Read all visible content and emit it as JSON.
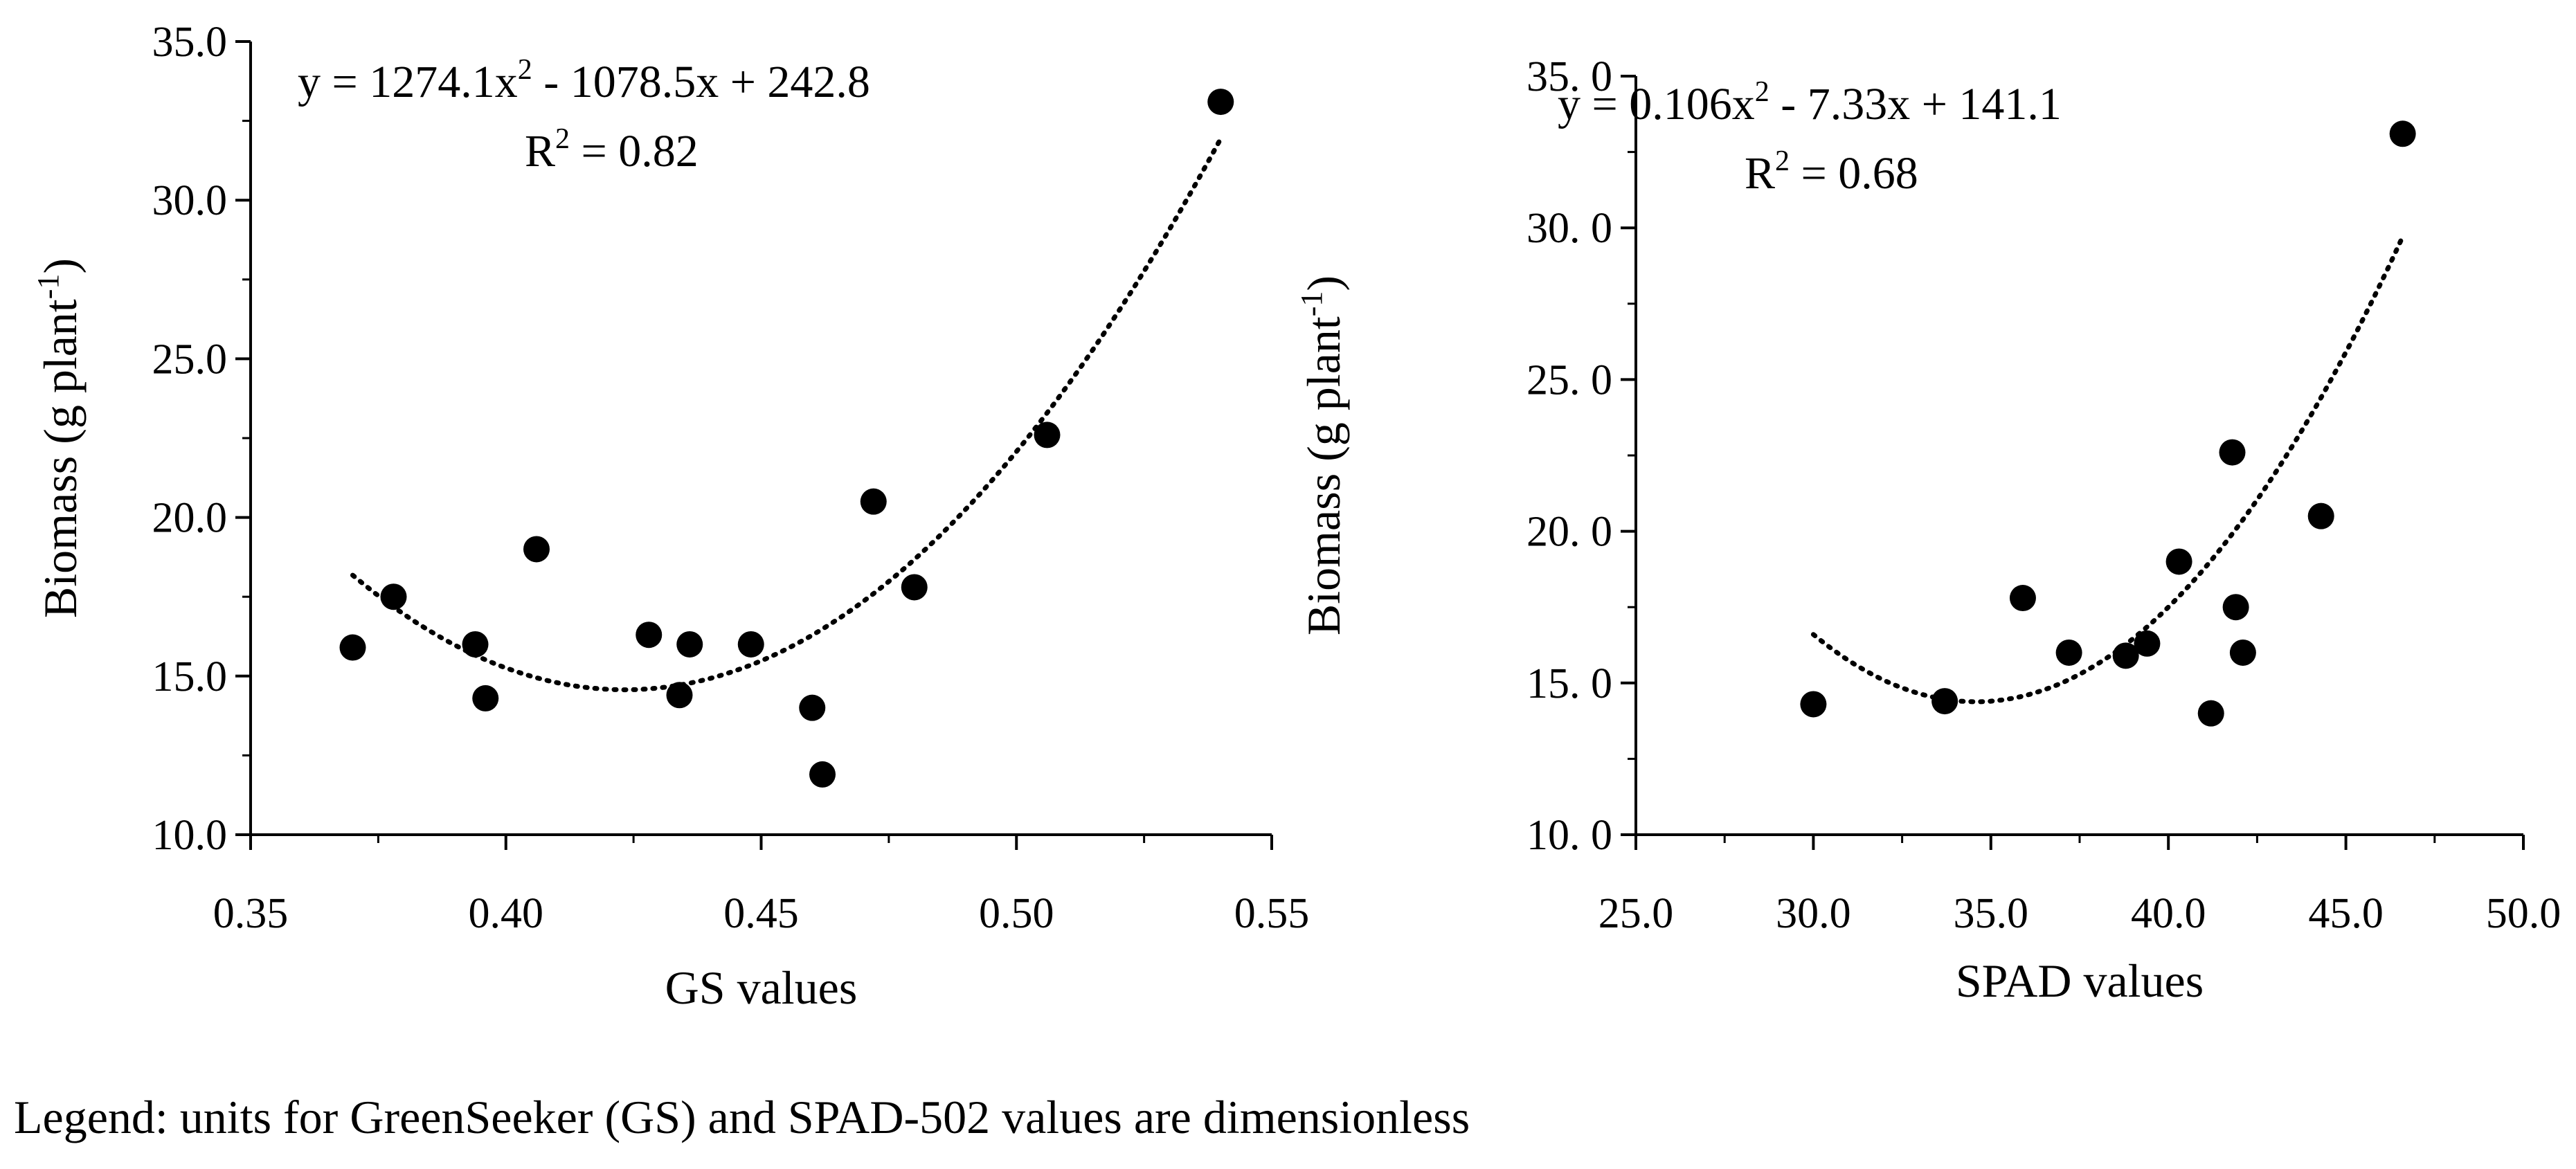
{
  "chart_data": [
    {
      "type": "scatter",
      "xlabel": "GS values",
      "ylabel": "Biomass (g plant",
      "ylabel_sup": "-1",
      "ylabel_close": ")",
      "xlim": [
        0.35,
        0.55
      ],
      "ylim": [
        10.0,
        35.0
      ],
      "xticks": [
        0.35,
        0.4,
        0.45,
        0.5,
        0.55
      ],
      "xtick_labels": [
        "0.35",
        "0.40",
        "0.45",
        "0.50",
        "0.55"
      ],
      "yticks": [
        10,
        15,
        20,
        25,
        30,
        35
      ],
      "ytick_labels": [
        "10.0",
        "15.0",
        "20.0",
        "25.0",
        "30.0",
        "35.0"
      ],
      "x": [
        0.37,
        0.378,
        0.394,
        0.396,
        0.406,
        0.428,
        0.434,
        0.436,
        0.448,
        0.46,
        0.462,
        0.472,
        0.48,
        0.506,
        0.54
      ],
      "y": [
        15.9,
        17.5,
        16.0,
        14.3,
        19.0,
        16.3,
        14.4,
        16.0,
        16.0,
        14.0,
        11.9,
        20.5,
        17.8,
        22.6,
        33.1
      ],
      "trendline": {
        "type": "poly2",
        "a": 1274.1,
        "b": -1078.5,
        "c": 242.8,
        "x_range": [
          0.37,
          0.54
        ]
      },
      "equation_parts": [
        "y = 1274.1x",
        "2",
        " - 1078.5x + 242.8"
      ],
      "r2_parts": [
        "R",
        "2",
        " = 0.82"
      ]
    },
    {
      "type": "scatter",
      "xlabel": "SPAD values",
      "ylabel": "Biomass (g plant",
      "ylabel_sup": "-1",
      "ylabel_close": ")",
      "xlim": [
        25.0,
        50.0
      ],
      "ylim": [
        10.0,
        35.0
      ],
      "xticks": [
        25,
        30,
        35,
        40,
        45,
        50
      ],
      "xtick_labels": [
        "25.0",
        "30.0",
        "35.0",
        "40.0",
        "45.0",
        "50.0"
      ],
      "yticks": [
        10,
        15,
        20,
        25,
        30,
        35
      ],
      "ytick_labels": [
        "10. 0",
        "15. 0",
        "20. 0",
        "25. 0",
        "30. 0",
        "35. 0"
      ],
      "x": [
        30.0,
        33.7,
        35.9,
        37.2,
        38.8,
        39.4,
        40.3,
        41.2,
        41.8,
        41.9,
        42.1,
        44.3,
        46.6
      ],
      "y": [
        14.3,
        14.4,
        17.8,
        16.0,
        15.9,
        16.3,
        19.0,
        14.0,
        22.6,
        17.5,
        16.0,
        20.5,
        33.1
      ],
      "trendline": {
        "type": "poly2",
        "a": 0.106,
        "b": -7.33,
        "c": 141.1,
        "x_range": [
          30.0,
          46.6
        ]
      },
      "equation_parts": [
        "y = 0.106x",
        "2",
        " - 7.33x + 141.1"
      ],
      "r2_parts": [
        "R",
        "2",
        " = 0.68"
      ]
    }
  ],
  "legend_note": "Legend: units for GreenSeeker (GS) and SPAD-502 values are dimensionless"
}
